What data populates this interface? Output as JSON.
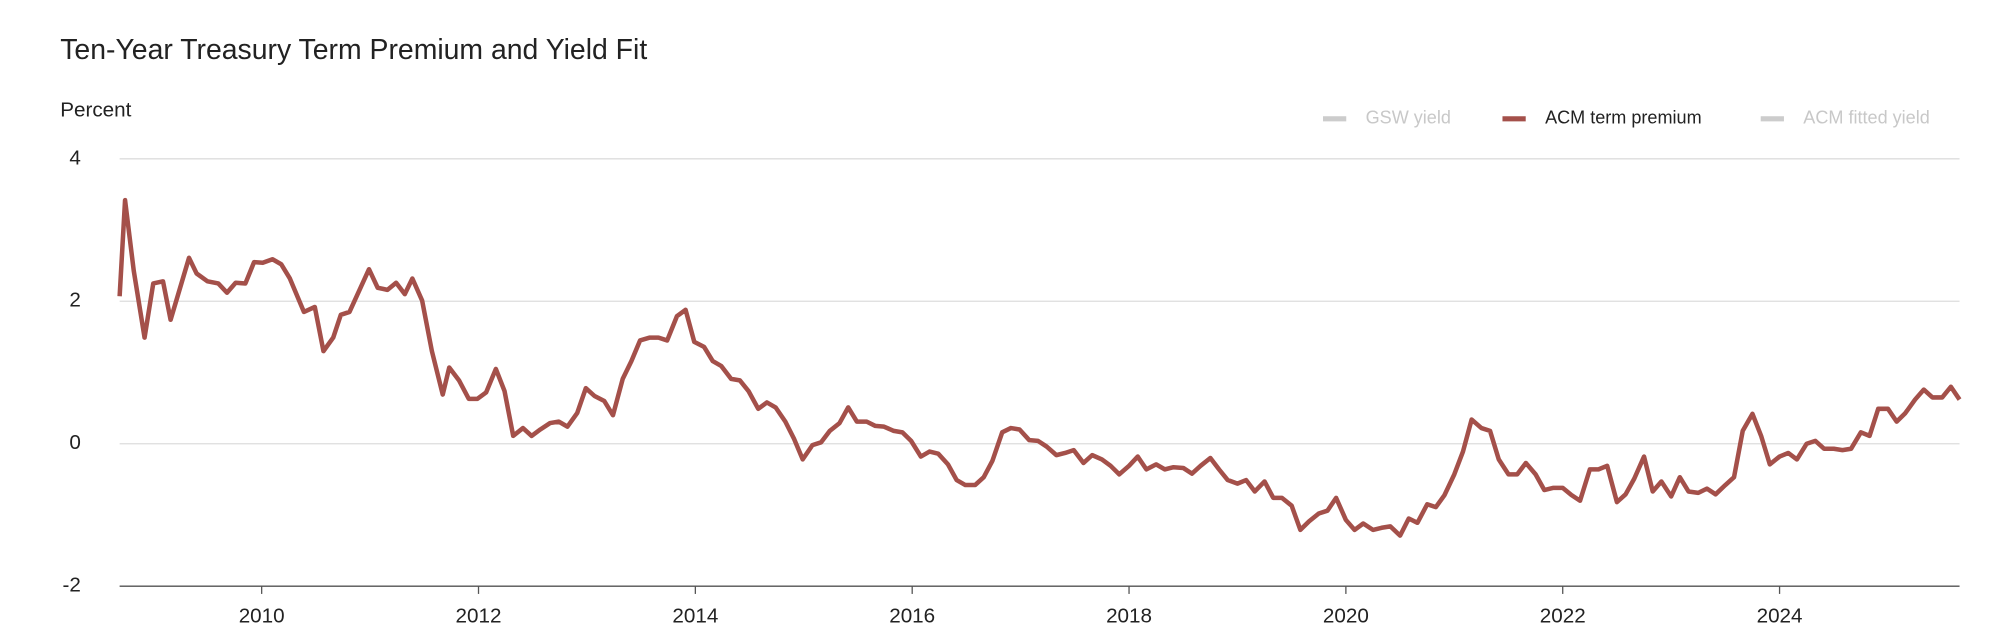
{
  "chart_data": {
    "type": "line",
    "title": "Ten-Year Treasury Term Premium and Yield Fit",
    "ylabel": "Percent",
    "xlim": [
      2008.69,
      2025.66
    ],
    "xticks": [
      2010,
      2012,
      2014,
      2016,
      2018,
      2020,
      2022,
      2024
    ],
    "ylim": [
      -2,
      4
    ],
    "yticks": [
      -2,
      0,
      2,
      4
    ],
    "grid": true,
    "x": [
      2008.69,
      2008.74,
      2008.82,
      2008.92,
      2009.0,
      2009.09,
      2009.16,
      2009.33,
      2009.4,
      2009.5,
      2009.6,
      2009.68,
      2009.76,
      2009.85,
      2009.93,
      2010.01,
      2010.1,
      2010.18,
      2010.26,
      2010.39,
      2010.49,
      2010.57,
      2010.66,
      2010.73,
      2010.81,
      2010.99,
      2011.07,
      2011.16,
      2011.24,
      2011.32,
      2011.39,
      2011.48,
      2011.57,
      2011.67,
      2011.73,
      2011.82,
      2011.91,
      2011.99,
      2012.07,
      2012.16,
      2012.24,
      2012.32,
      2012.41,
      2012.49,
      2012.57,
      2012.66,
      2012.74,
      2012.82,
      2012.91,
      2012.99,
      2013.07,
      2013.16,
      2013.24,
      2013.33,
      2013.41,
      2013.49,
      2013.58,
      2013.66,
      2013.74,
      2013.83,
      2013.91,
      2013.99,
      2014.08,
      2014.16,
      2014.24,
      2014.33,
      2014.41,
      2014.49,
      2014.58,
      2014.66,
      2014.74,
      2014.83,
      2014.91,
      2014.99,
      2015.08,
      2015.16,
      2015.24,
      2015.33,
      2015.41,
      2015.49,
      2015.58,
      2015.66,
      2015.74,
      2015.83,
      2015.91,
      2015.99,
      2016.08,
      2016.16,
      2016.24,
      2016.33,
      2016.41,
      2016.49,
      2016.58,
      2016.66,
      2016.74,
      2016.83,
      2016.91,
      2016.99,
      2017.08,
      2017.16,
      2017.24,
      2017.33,
      2017.41,
      2017.49,
      2017.58,
      2017.66,
      2017.75,
      2017.83,
      2017.91,
      2018.0,
      2018.08,
      2018.16,
      2018.25,
      2018.33,
      2018.41,
      2018.5,
      2018.58,
      2018.66,
      2018.75,
      2018.83,
      2018.91,
      2019.0,
      2019.08,
      2019.16,
      2019.25,
      2019.33,
      2019.41,
      2019.5,
      2019.58,
      2019.66,
      2019.75,
      2019.83,
      2019.91,
      2020.0,
      2020.08,
      2020.16,
      2020.25,
      2020.33,
      2020.41,
      2020.5,
      2020.58,
      2020.66,
      2020.75,
      2020.83,
      2020.91,
      2021.0,
      2021.08,
      2021.16,
      2021.25,
      2021.33,
      2021.41,
      2021.5,
      2021.58,
      2021.66,
      2021.75,
      2021.83,
      2021.91,
      2022.0,
      2022.08,
      2022.16,
      2022.25,
      2022.33,
      2022.41,
      2022.5,
      2022.58,
      2022.66,
      2022.75,
      2022.83,
      2022.91,
      2023.0,
      2023.08,
      2023.16,
      2023.25,
      2023.33,
      2023.41,
      2023.5,
      2023.58,
      2023.66,
      2023.75,
      2023.83,
      2023.91,
      2024.0,
      2024.08,
      2024.16,
      2024.25,
      2024.33,
      2024.41,
      2024.5,
      2024.58,
      2024.66,
      2024.75,
      2024.83,
      2024.91,
      2025.0,
      2025.08,
      2025.16,
      2025.25,
      2025.33,
      2025.41,
      2025.5,
      2025.58,
      2025.66
    ],
    "series": [
      {
        "name": "GSW yield",
        "color": "#cccccc",
        "visible": false
      },
      {
        "name": "ACM term premium",
        "color": "#a4504a",
        "visible": true,
        "values": [
          2.07,
          3.42,
          2.43,
          1.49,
          2.25,
          2.28,
          1.74,
          2.61,
          2.39,
          2.28,
          2.25,
          2.12,
          2.26,
          2.25,
          2.55,
          2.54,
          2.59,
          2.52,
          2.32,
          1.85,
          1.92,
          1.3,
          1.49,
          1.81,
          1.85,
          2.45,
          2.19,
          2.16,
          2.26,
          2.1,
          2.32,
          2.01,
          1.3,
          0.69,
          1.07,
          0.89,
          0.63,
          0.63,
          0.72,
          1.05,
          0.74,
          0.11,
          0.22,
          0.11,
          0.2,
          0.29,
          0.31,
          0.24,
          0.43,
          0.78,
          0.67,
          0.6,
          0.4,
          0.91,
          1.16,
          1.45,
          1.49,
          1.49,
          1.45,
          1.79,
          1.88,
          1.43,
          1.36,
          1.16,
          1.09,
          0.91,
          0.89,
          0.74,
          0.49,
          0.58,
          0.51,
          0.31,
          0.07,
          -0.22,
          -0.02,
          0.02,
          0.18,
          0.29,
          0.51,
          0.31,
          0.31,
          0.25,
          0.24,
          0.18,
          0.16,
          0.04,
          -0.18,
          -0.11,
          -0.14,
          -0.29,
          -0.51,
          -0.58,
          -0.58,
          -0.47,
          -0.24,
          0.16,
          0.22,
          0.2,
          0.05,
          0.04,
          -0.04,
          -0.16,
          -0.13,
          -0.09,
          -0.27,
          -0.16,
          -0.22,
          -0.31,
          -0.43,
          -0.31,
          -0.18,
          -0.36,
          -0.29,
          -0.36,
          -0.33,
          -0.34,
          -0.42,
          -0.31,
          -0.2,
          -0.36,
          -0.51,
          -0.56,
          -0.51,
          -0.67,
          -0.53,
          -0.76,
          -0.76,
          -0.87,
          -1.21,
          -1.09,
          -0.98,
          -0.94,
          -0.76,
          -1.07,
          -1.21,
          -1.12,
          -1.21,
          -1.18,
          -1.16,
          -1.29,
          -1.05,
          -1.11,
          -0.85,
          -0.89,
          -0.72,
          -0.43,
          -0.11,
          0.34,
          0.22,
          0.18,
          -0.22,
          -0.43,
          -0.43,
          -0.27,
          -0.43,
          -0.65,
          -0.62,
          -0.62,
          -0.72,
          -0.8,
          -0.36,
          -0.36,
          -0.31,
          -0.82,
          -0.71,
          -0.49,
          -0.18,
          -0.67,
          -0.53,
          -0.74,
          -0.47,
          -0.67,
          -0.69,
          -0.63,
          -0.71,
          -0.58,
          -0.47,
          0.18,
          0.42,
          0.11,
          -0.29,
          -0.18,
          -0.13,
          -0.22,
          0.0,
          0.04,
          -0.07,
          -0.07,
          -0.09,
          -0.07,
          0.16,
          0.11,
          0.49,
          0.49,
          0.31,
          0.43,
          0.62,
          0.76,
          0.65,
          0.65,
          0.8,
          0.62
        ]
      },
      {
        "name": "ACM fitted yield",
        "color": "#cccccc",
        "visible": false
      }
    ]
  }
}
